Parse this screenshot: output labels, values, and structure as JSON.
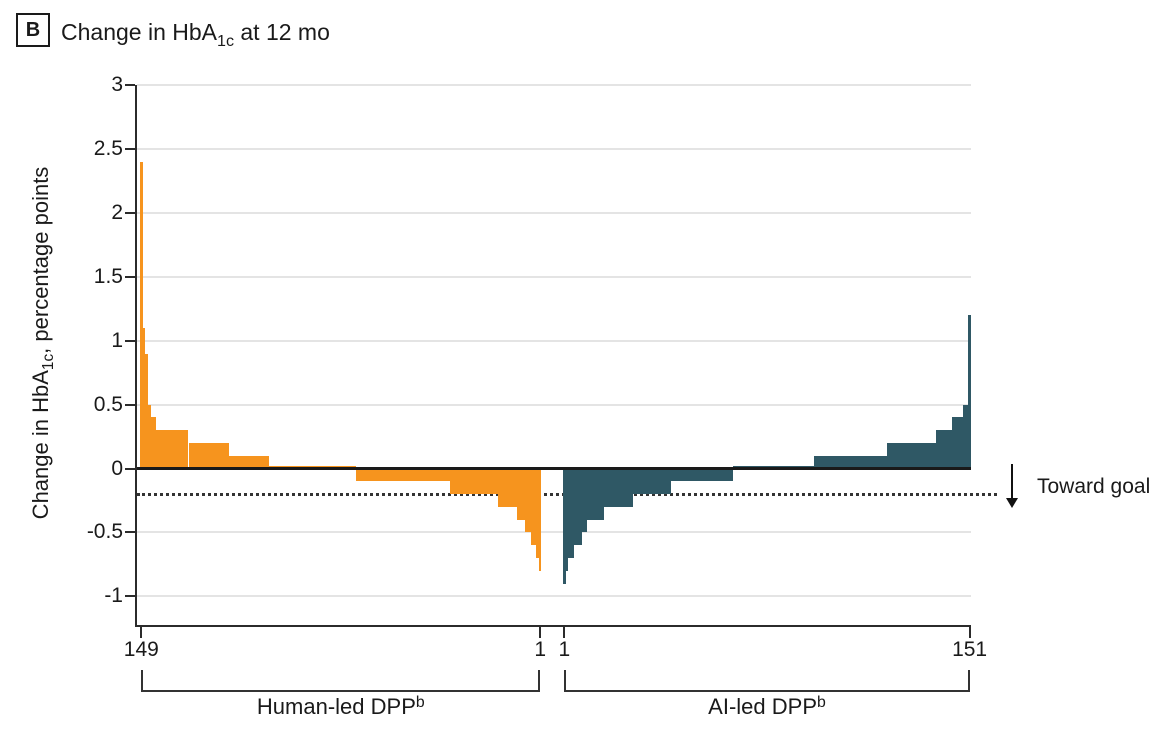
{
  "panel": {
    "letter": "B",
    "title": {
      "pre": "Change in HbA",
      "sub": "1c",
      "post": " at 12 mo"
    }
  },
  "y_axis": {
    "label": {
      "pre": "Change in HbA",
      "sub": "1c",
      "post": ", percentage points"
    }
  },
  "annotation": {
    "toward_goal_label": "Toward goal",
    "arrow_icon": "down-arrow"
  },
  "colors": {
    "human": "#F6941E",
    "ai": "#2F5865",
    "gridline": "#E4E4E4",
    "zero_line": "#1A1A1A",
    "axis": "#2B2B2B"
  },
  "chart_data": {
    "type": "bar",
    "subtype": "individual-participant-waterfall",
    "title": "Change in HbA1c at 12 mo",
    "ylabel": "Change in HbA1c, percentage points",
    "ylim": [
      -1.3,
      3
    ],
    "yticks": [
      3,
      2.5,
      2,
      1.5,
      1,
      0.5,
      0,
      -0.5,
      -1
    ],
    "grid": true,
    "reference_line": {
      "y": -0.2,
      "style": "dotted",
      "label": "Toward goal",
      "direction": "down"
    },
    "series": [
      {
        "name": "Human-led DPP",
        "name_sup": "b",
        "n": 149,
        "order": "descending",
        "x_tick_left": "149",
        "x_tick_right": "1",
        "color": "#F6941E",
        "runs": [
          {
            "value": 2.4,
            "count": 1
          },
          {
            "value": 1.1,
            "count": 1
          },
          {
            "value": 0.9,
            "count": 1
          },
          {
            "value": 0.5,
            "count": 1
          },
          {
            "value": 0.4,
            "count": 2
          },
          {
            "value": 0.3,
            "count": 12
          },
          {
            "value": 0.2,
            "count": 15
          },
          {
            "value": 0.1,
            "count": 15
          },
          {
            "value": 0.02,
            "count": 32
          },
          {
            "value": -0.1,
            "count": 35
          },
          {
            "value": -0.2,
            "count": 18
          },
          {
            "value": -0.3,
            "count": 7
          },
          {
            "value": -0.4,
            "count": 3
          },
          {
            "value": -0.5,
            "count": 2
          },
          {
            "value": -0.6,
            "count": 2
          },
          {
            "value": -0.7,
            "count": 1
          },
          {
            "value": -0.8,
            "count": 1
          }
        ]
      },
      {
        "name": "AI-led DPP",
        "name_sup": "b",
        "n": 151,
        "order": "ascending",
        "x_tick_left": "1",
        "x_tick_right": "151",
        "color": "#2F5865",
        "runs": [
          {
            "value": -0.9,
            "count": 1
          },
          {
            "value": -0.8,
            "count": 1
          },
          {
            "value": -0.7,
            "count": 2
          },
          {
            "value": -0.6,
            "count": 3
          },
          {
            "value": -0.5,
            "count": 2
          },
          {
            "value": -0.4,
            "count": 6
          },
          {
            "value": -0.3,
            "count": 11
          },
          {
            "value": -0.2,
            "count": 14
          },
          {
            "value": -0.1,
            "count": 23
          },
          {
            "value": 0.02,
            "count": 30
          },
          {
            "value": 0.1,
            "count": 27
          },
          {
            "value": 0.2,
            "count": 18
          },
          {
            "value": 0.3,
            "count": 6
          },
          {
            "value": 0.4,
            "count": 4
          },
          {
            "value": 0.5,
            "count": 2
          },
          {
            "value": 1.2,
            "count": 1
          }
        ]
      }
    ]
  }
}
